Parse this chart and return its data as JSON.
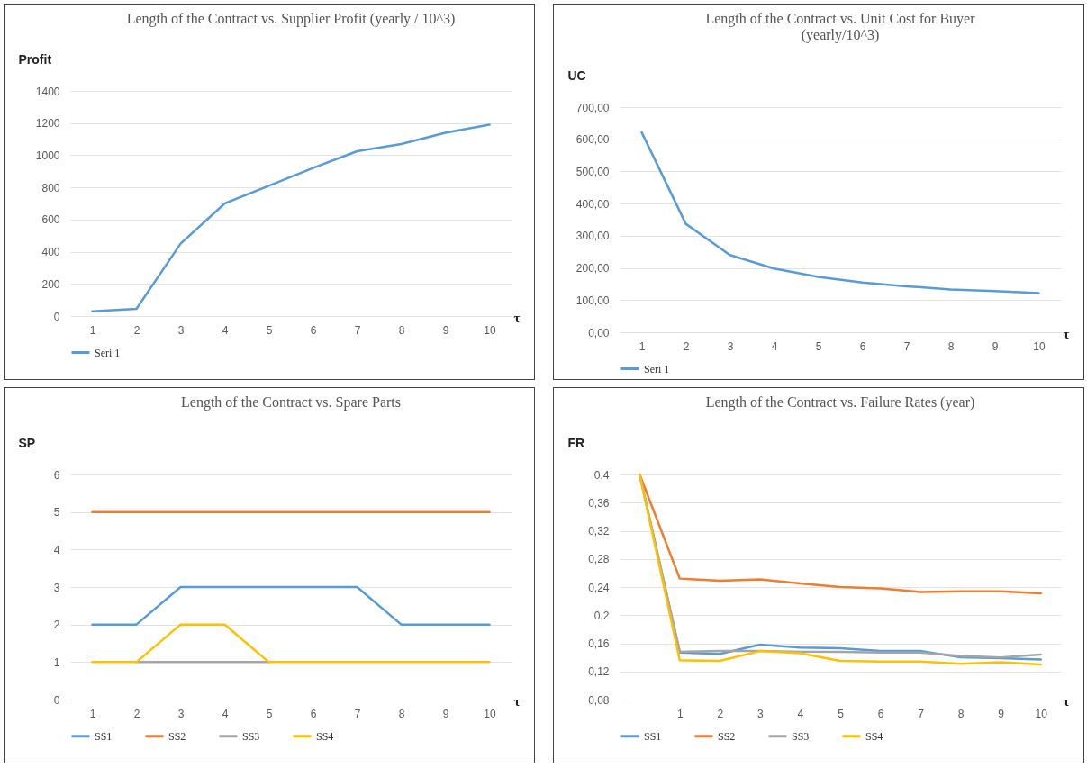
{
  "chart_data": [
    {
      "type": "line",
      "title": "Length of the Contract vs. Supplier Profit (yearly / 10^3)",
      "ylabel": "Profit",
      "xlabel": "τ",
      "categories": [
        "1",
        "2",
        "3",
        "4",
        "5",
        "6",
        "7",
        "8",
        "9",
        "10"
      ],
      "series": [
        {
          "name": "Seri 1",
          "color": "#5b9bd5",
          "values": [
            30,
            45,
            450,
            700,
            810,
            920,
            1025,
            1070,
            1140,
            1190
          ]
        }
      ],
      "ylim": [
        0,
        1400
      ],
      "yticks": [
        0,
        200,
        400,
        600,
        800,
        1000,
        1200,
        1400
      ],
      "grid": "y",
      "legend": "bottom"
    },
    {
      "type": "line",
      "title": "Length of the Contract vs. Unit Cost for Buyer\n(yearly/10^3)",
      "ylabel": "UC",
      "xlabel": "τ",
      "categories": [
        "1",
        "2",
        "3",
        "4",
        "5",
        "6",
        "7",
        "8",
        "9",
        "10"
      ],
      "series": [
        {
          "name": "Seri 1",
          "color": "#5b9bd5",
          "values": [
            622,
            337,
            240,
            198,
            172,
            155,
            143,
            133,
            128,
            122
          ]
        }
      ],
      "ylim": [
        0,
        700
      ],
      "yticks": [
        {
          "value": 0,
          "label": "0,00"
        },
        {
          "value": 100,
          "label": "100,00"
        },
        {
          "value": 200,
          "label": "200,00"
        },
        {
          "value": 300,
          "label": "300,00"
        },
        {
          "value": 400,
          "label": "400,00"
        },
        {
          "value": 500,
          "label": "500,00"
        },
        {
          "value": 600,
          "label": "600,00"
        },
        {
          "value": 700,
          "label": "700,00"
        }
      ],
      "grid": "y",
      "legend": "bottom"
    },
    {
      "type": "line",
      "title": "Length of the Contract vs. Spare Parts",
      "ylabel": "SP",
      "xlabel": "τ",
      "categories": [
        "1",
        "2",
        "3",
        "4",
        "5",
        "6",
        "7",
        "8",
        "9",
        "10"
      ],
      "series": [
        {
          "name": "SS1",
          "color": "#5b9bd5",
          "values": [
            2,
            2,
            3,
            3,
            3,
            3,
            3,
            2,
            2,
            2
          ]
        },
        {
          "name": "SS2",
          "color": "#ed7d31",
          "values": [
            5,
            5,
            5,
            5,
            5,
            5,
            5,
            5,
            5,
            5
          ]
        },
        {
          "name": "SS3",
          "color": "#a5a5a5",
          "values": [
            null,
            1,
            1,
            1,
            1,
            null,
            null,
            null,
            null,
            null
          ]
        },
        {
          "name": "SS4",
          "color": "#ffc000",
          "values": [
            1,
            1,
            2,
            2,
            1,
            1,
            1,
            1,
            1,
            1
          ]
        }
      ],
      "ylim": [
        0,
        6
      ],
      "yticks": [
        0,
        1,
        2,
        3,
        4,
        5,
        6
      ],
      "grid": "y",
      "legend": "bottom"
    },
    {
      "type": "line",
      "title": "Length of the Contract vs. Failure Rates (year)",
      "ylabel": "FR",
      "xlabel": "τ",
      "categories": [
        null,
        "1",
        "2",
        "3",
        "4",
        "5",
        "6",
        "7",
        "8",
        "9",
        "10"
      ],
      "series": [
        {
          "name": "SS1",
          "color": "#5b9bd5",
          "values": [
            0.4,
            0.147,
            0.145,
            0.158,
            0.154,
            0.153,
            0.149,
            0.149,
            0.14,
            0.139,
            0.137
          ]
        },
        {
          "name": "SS2",
          "color": "#ed7d31",
          "values": [
            0.4,
            0.252,
            0.249,
            0.251,
            0.245,
            0.24,
            0.238,
            0.233,
            0.234,
            0.234,
            0.231
          ]
        },
        {
          "name": "SS3",
          "color": "#a5a5a5",
          "values": [
            0.4,
            0.148,
            0.149,
            0.149,
            0.148,
            0.148,
            0.147,
            0.147,
            0.142,
            0.14,
            0.144
          ]
        },
        {
          "name": "SS4",
          "color": "#ffc000",
          "values": [
            0.4,
            0.136,
            0.135,
            0.149,
            0.146,
            0.135,
            0.134,
            0.134,
            0.131,
            0.133,
            0.13
          ]
        }
      ],
      "ylim": [
        0.08,
        0.4
      ],
      "yticks": [
        {
          "value": 0.08,
          "label": "0,08"
        },
        {
          "value": 0.12,
          "label": "0,12"
        },
        {
          "value": 0.16,
          "label": "0,16"
        },
        {
          "value": 0.2,
          "label": "0,2"
        },
        {
          "value": 0.24,
          "label": "0,24"
        },
        {
          "value": 0.28,
          "label": "0,28"
        },
        {
          "value": 0.32,
          "label": "0,32"
        },
        {
          "value": 0.36,
          "label": "0,36"
        },
        {
          "value": 0.4,
          "label": "0,4"
        }
      ],
      "grid": "y",
      "legend": "bottom"
    }
  ]
}
